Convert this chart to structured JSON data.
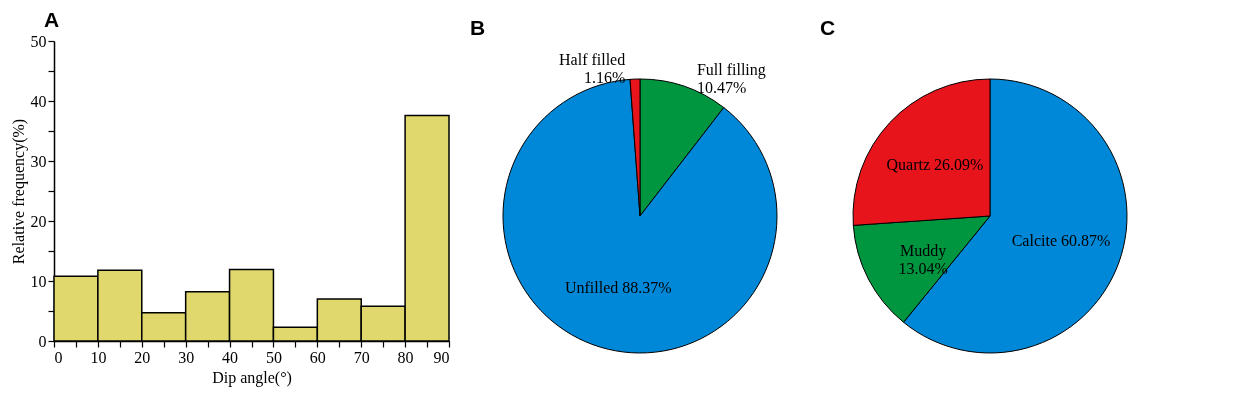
{
  "chart_data": [
    {
      "type": "histogram",
      "title": "A",
      "xlabel": "Dip angle(°)",
      "ylabel": "Relative frequency(%)",
      "bins": [
        0,
        10,
        20,
        30,
        40,
        50,
        60,
        70,
        80,
        90
      ],
      "values": [
        10.8,
        11.8,
        4.7,
        8.2,
        11.9,
        2.3,
        7.0,
        5.8,
        37.6
      ],
      "color": "#e0d86c",
      "xlim": [
        0,
        90
      ],
      "ylim": [
        0,
        50
      ],
      "xticks": [
        0,
        {
          "value": 5,
          "label": null
        },
        10,
        {
          "value": 15,
          "label": null
        },
        20,
        {
          "value": 25,
          "label": null
        },
        30,
        {
          "value": 35,
          "label": null
        },
        40,
        {
          "value": 45,
          "label": null
        },
        50,
        {
          "value": 55,
          "label": null
        },
        60,
        {
          "value": 65,
          "label": null
        },
        70,
        {
          "value": 75,
          "label": null
        },
        80,
        {
          "value": 85,
          "label": null
        },
        90
      ],
      "yticks": [
        0,
        {
          "value": 5,
          "label": null
        },
        10,
        {
          "value": 15,
          "label": null
        },
        20,
        {
          "value": 25,
          "label": null
        },
        30,
        {
          "value": 35,
          "label": null
        },
        40,
        {
          "value": 45,
          "label": null
        },
        50
      ]
    },
    {
      "type": "pie",
      "title": "B",
      "categories": [
        "Full filling",
        "Unfilled",
        "Half filled"
      ],
      "values": [
        10.47,
        88.37,
        1.16
      ],
      "value_labels": [
        "10.47%",
        "88.37%",
        "1.16%"
      ],
      "colors": [
        "#009640",
        "#0088d8",
        "#e8141c"
      ]
    },
    {
      "type": "pie",
      "title": "C",
      "categories": [
        "Calcite",
        "Muddy",
        "Quartz"
      ],
      "values": [
        60.87,
        13.04,
        26.09
      ],
      "value_labels": [
        "60.87%",
        "13.04%",
        "26.09%"
      ],
      "colors": [
        "#0088d8",
        "#009640",
        "#e8141c"
      ]
    }
  ]
}
